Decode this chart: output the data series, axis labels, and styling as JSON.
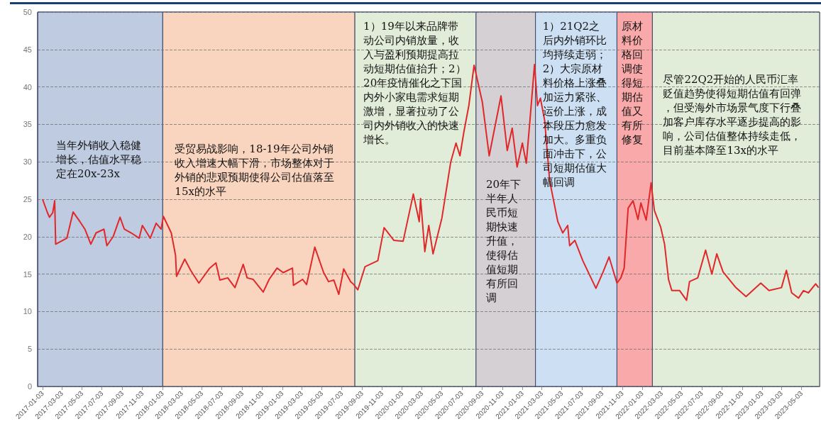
{
  "chart_data": {
    "type": "line",
    "marker": "none",
    "grid": "y",
    "color": "#e0282a",
    "xlim": [
      "2016-12-19",
      "2023-06-27"
    ],
    "ylim": [
      0,
      50
    ],
    "yticks": [
      0,
      5,
      10,
      15,
      20,
      25,
      30,
      35,
      40,
      45,
      50
    ],
    "xticks": [
      "2017-01-03",
      "2017-03-03",
      "2017-05-03",
      "2017-07-03",
      "2017-09-03",
      "2017-11-03",
      "2018-01-03",
      "2018-03-03",
      "2018-05-03",
      "2018-07-03",
      "2018-09-03",
      "2018-11-03",
      "2019-01-03",
      "2019-03-03",
      "2019-05-03",
      "2019-07-03",
      "2019-09-03",
      "2019-11-03",
      "2020-01-03",
      "2020-03-03",
      "2020-05-03",
      "2020-07-03",
      "2020-09-03",
      "2020-11-03",
      "2021-01-03",
      "2021-03-03",
      "2021-05-03",
      "2021-07-03",
      "2021-09-03",
      "2021-11-03",
      "2022-01-03",
      "2022-03-03",
      "2022-05-03",
      "2022-07-03",
      "2022-09-03",
      "2022-11-03",
      "2023-01-03",
      "2023-03-03",
      "2023-05-03"
    ],
    "x": [
      "2017-01-03",
      "2017-01-18",
      "2017-01-24",
      "2017-02-03",
      "2017-02-09",
      "2017-02-12",
      "2017-03-05",
      "2017-03-18",
      "2017-04-06",
      "2017-04-27",
      "2017-05-12",
      "2017-05-30",
      "2017-06-15",
      "2017-07-09",
      "2017-07-18",
      "2017-08-06",
      "2017-08-27",
      "2017-09-09",
      "2017-09-30",
      "2017-10-24",
      "2017-11-03",
      "2017-11-27",
      "2017-12-15",
      "2017-12-30",
      "2018-01-06",
      "2018-01-30",
      "2018-02-12",
      "2018-02-15",
      "2018-03-12",
      "2018-03-30",
      "2018-04-24",
      "2018-05-27",
      "2018-06-15",
      "2018-06-27",
      "2018-07-21",
      "2018-08-12",
      "2018-09-06",
      "2018-09-18",
      "2018-10-06",
      "2018-11-06",
      "2018-11-24",
      "2018-12-18",
      "2019-01-06",
      "2019-02-03",
      "2019-02-06",
      "2019-03-06",
      "2019-03-18",
      "2019-04-12",
      "2019-05-09",
      "2019-05-24",
      "2019-06-09",
      "2019-06-24",
      "2019-07-09",
      "2019-07-30",
      "2019-08-09",
      "2019-08-21",
      "2019-09-12",
      "2019-10-21",
      "2019-11-09",
      "2019-12-09",
      "2020-01-06",
      "2020-02-06",
      "2020-02-24",
      "2020-02-28",
      "2020-03-12",
      "2020-03-24",
      "2020-04-06",
      "2020-05-03",
      "2020-05-30",
      "2020-06-15",
      "2020-06-27",
      "2020-07-09",
      "2020-07-24",
      "2020-08-09",
      "2020-09-03",
      "2020-09-24",
      "2020-10-30",
      "2020-11-18",
      "2020-12-03",
      "2020-12-18",
      "2021-01-03",
      "2021-01-15",
      "2021-01-27",
      "2021-02-09",
      "2021-02-18",
      "2021-02-27",
      "2021-03-12",
      "2021-03-27",
      "2021-04-21",
      "2021-05-06",
      "2021-05-21",
      "2021-05-27",
      "2021-06-12",
      "2021-07-06",
      "2021-08-15",
      "2021-09-06",
      "2021-09-24",
      "2021-10-18",
      "2021-10-30",
      "2021-11-09",
      "2021-11-21",
      "2021-12-06",
      "2021-12-21",
      "2021-12-30",
      "2022-01-15",
      "2022-01-30",
      "2022-02-09",
      "2022-02-28",
      "2022-03-12",
      "2022-03-24",
      "2022-04-03",
      "2022-04-27",
      "2022-05-18",
      "2022-05-27",
      "2022-06-21",
      "2022-07-15",
      "2022-08-03",
      "2022-08-18",
      "2022-09-06",
      "2022-10-15",
      "2022-11-15",
      "2022-12-30",
      "2023-01-24",
      "2023-03-03",
      "2023-03-18",
      "2023-04-03",
      "2023-04-24",
      "2023-05-09",
      "2023-05-24",
      "2023-06-15",
      "2023-06-24"
    ],
    "values": [
      25,
      23.2,
      22.6,
      23.2,
      24.8,
      19,
      19.5,
      19.8,
      23.3,
      22,
      21,
      19,
      20.5,
      21,
      18.8,
      20,
      22.6,
      21,
      20.5,
      19.8,
      21.5,
      19.8,
      21.8,
      21,
      22.7,
      20.5,
      17.5,
      14.7,
      17,
      15.5,
      13.8,
      15.8,
      16.5,
      14.2,
      14.5,
      13.2,
      16.3,
      14.5,
      14.3,
      12.6,
      14.3,
      15.8,
      15.2,
      15.8,
      13.5,
      14.3,
      13.6,
      18.6,
      15.2,
      14,
      14.2,
      12.3,
      15.7,
      14,
      13.6,
      12.9,
      16,
      16.8,
      21.2,
      19.5,
      19.4,
      25.7,
      22,
      25.1,
      18,
      21.5,
      17.7,
      22.5,
      30,
      32.5,
      30.8,
      34,
      37.5,
      42.9,
      38,
      30.8,
      38.8,
      31.5,
      34.5,
      29.3,
      32.5,
      29.8,
      36,
      43,
      37.5,
      38.5,
      35.5,
      27.5,
      22,
      20.5,
      21.5,
      18.8,
      19.5,
      16.8,
      13.1,
      15.3,
      17.3,
      13.8,
      14.5,
      15.8,
      23.8,
      24.8,
      22.3,
      24.5,
      22.2,
      27.2,
      23.5,
      21.3,
      19,
      14.3,
      12.8,
      12.8,
      11.5,
      14,
      14.5,
      18.2,
      15,
      17.7,
      15.3,
      13.2,
      12,
      13.8,
      12.8,
      13.2,
      15.5,
      12.5,
      11.8,
      12.8,
      12.5,
      13.7,
      13.2
    ],
    "bands": [
      {
        "axis": "x",
        "from": "2016-12-19",
        "to": "2018-01-04",
        "color": "#bfcbe0",
        "label": "当年外销收入稳健增长，估值水平稳定在20x-23x"
      },
      {
        "axis": "x",
        "from": "2018-01-04",
        "to": "2019-08-12",
        "color": "#f9d5c0",
        "label": "受贸易战影响，18-19年公司外销收入增速大幅下滑，市场整体对于外销的悲观预期使得公司估值落至15x的水平"
      },
      {
        "axis": "x",
        "from": "2019-08-12",
        "to": "2020-08-15",
        "color": "#e2edd9",
        "label": "1）19年以来品牌带动公司内销放量，收入与盈利预期提高拉动短期估值抬升；2）20年疫情催化之下国内外小家电需求短期激增，显著拉动了公司内外销收入的快速增长。"
      },
      {
        "axis": "x",
        "from": "2020-08-15",
        "to": "2021-02-12",
        "color": "#d4d0d4",
        "label": "20年下半年人民币短期快速升值，使得估值短期有所回调"
      },
      {
        "axis": "x",
        "from": "2021-02-12",
        "to": "2021-10-18",
        "color": "#cde0f3",
        "label": "1）21Q2之后内外销环比均持续走弱；2）大宗原材料价格上涨叠加运力紧张、运价上涨，成本段压力愈发加大。多重负面冲击下，公司短期估值大幅回调"
      },
      {
        "axis": "x",
        "from": "2021-10-18",
        "to": "2022-02-03",
        "color": "#f9a9a9",
        "label": "原材料价格回调使得短期估值又有所修复"
      },
      {
        "axis": "x",
        "from": "2022-02-03",
        "to": "2023-06-27",
        "color": "#e2edd9",
        "label": "尽管22Q2开始的人民币汇率贬值趋势使得短期估值有回弹，但受海外市场景气度下行叠加客户库存水平逐步提高的影响，公司估值整体持续走低，目前基本降至13x的水平"
      }
    ]
  }
}
